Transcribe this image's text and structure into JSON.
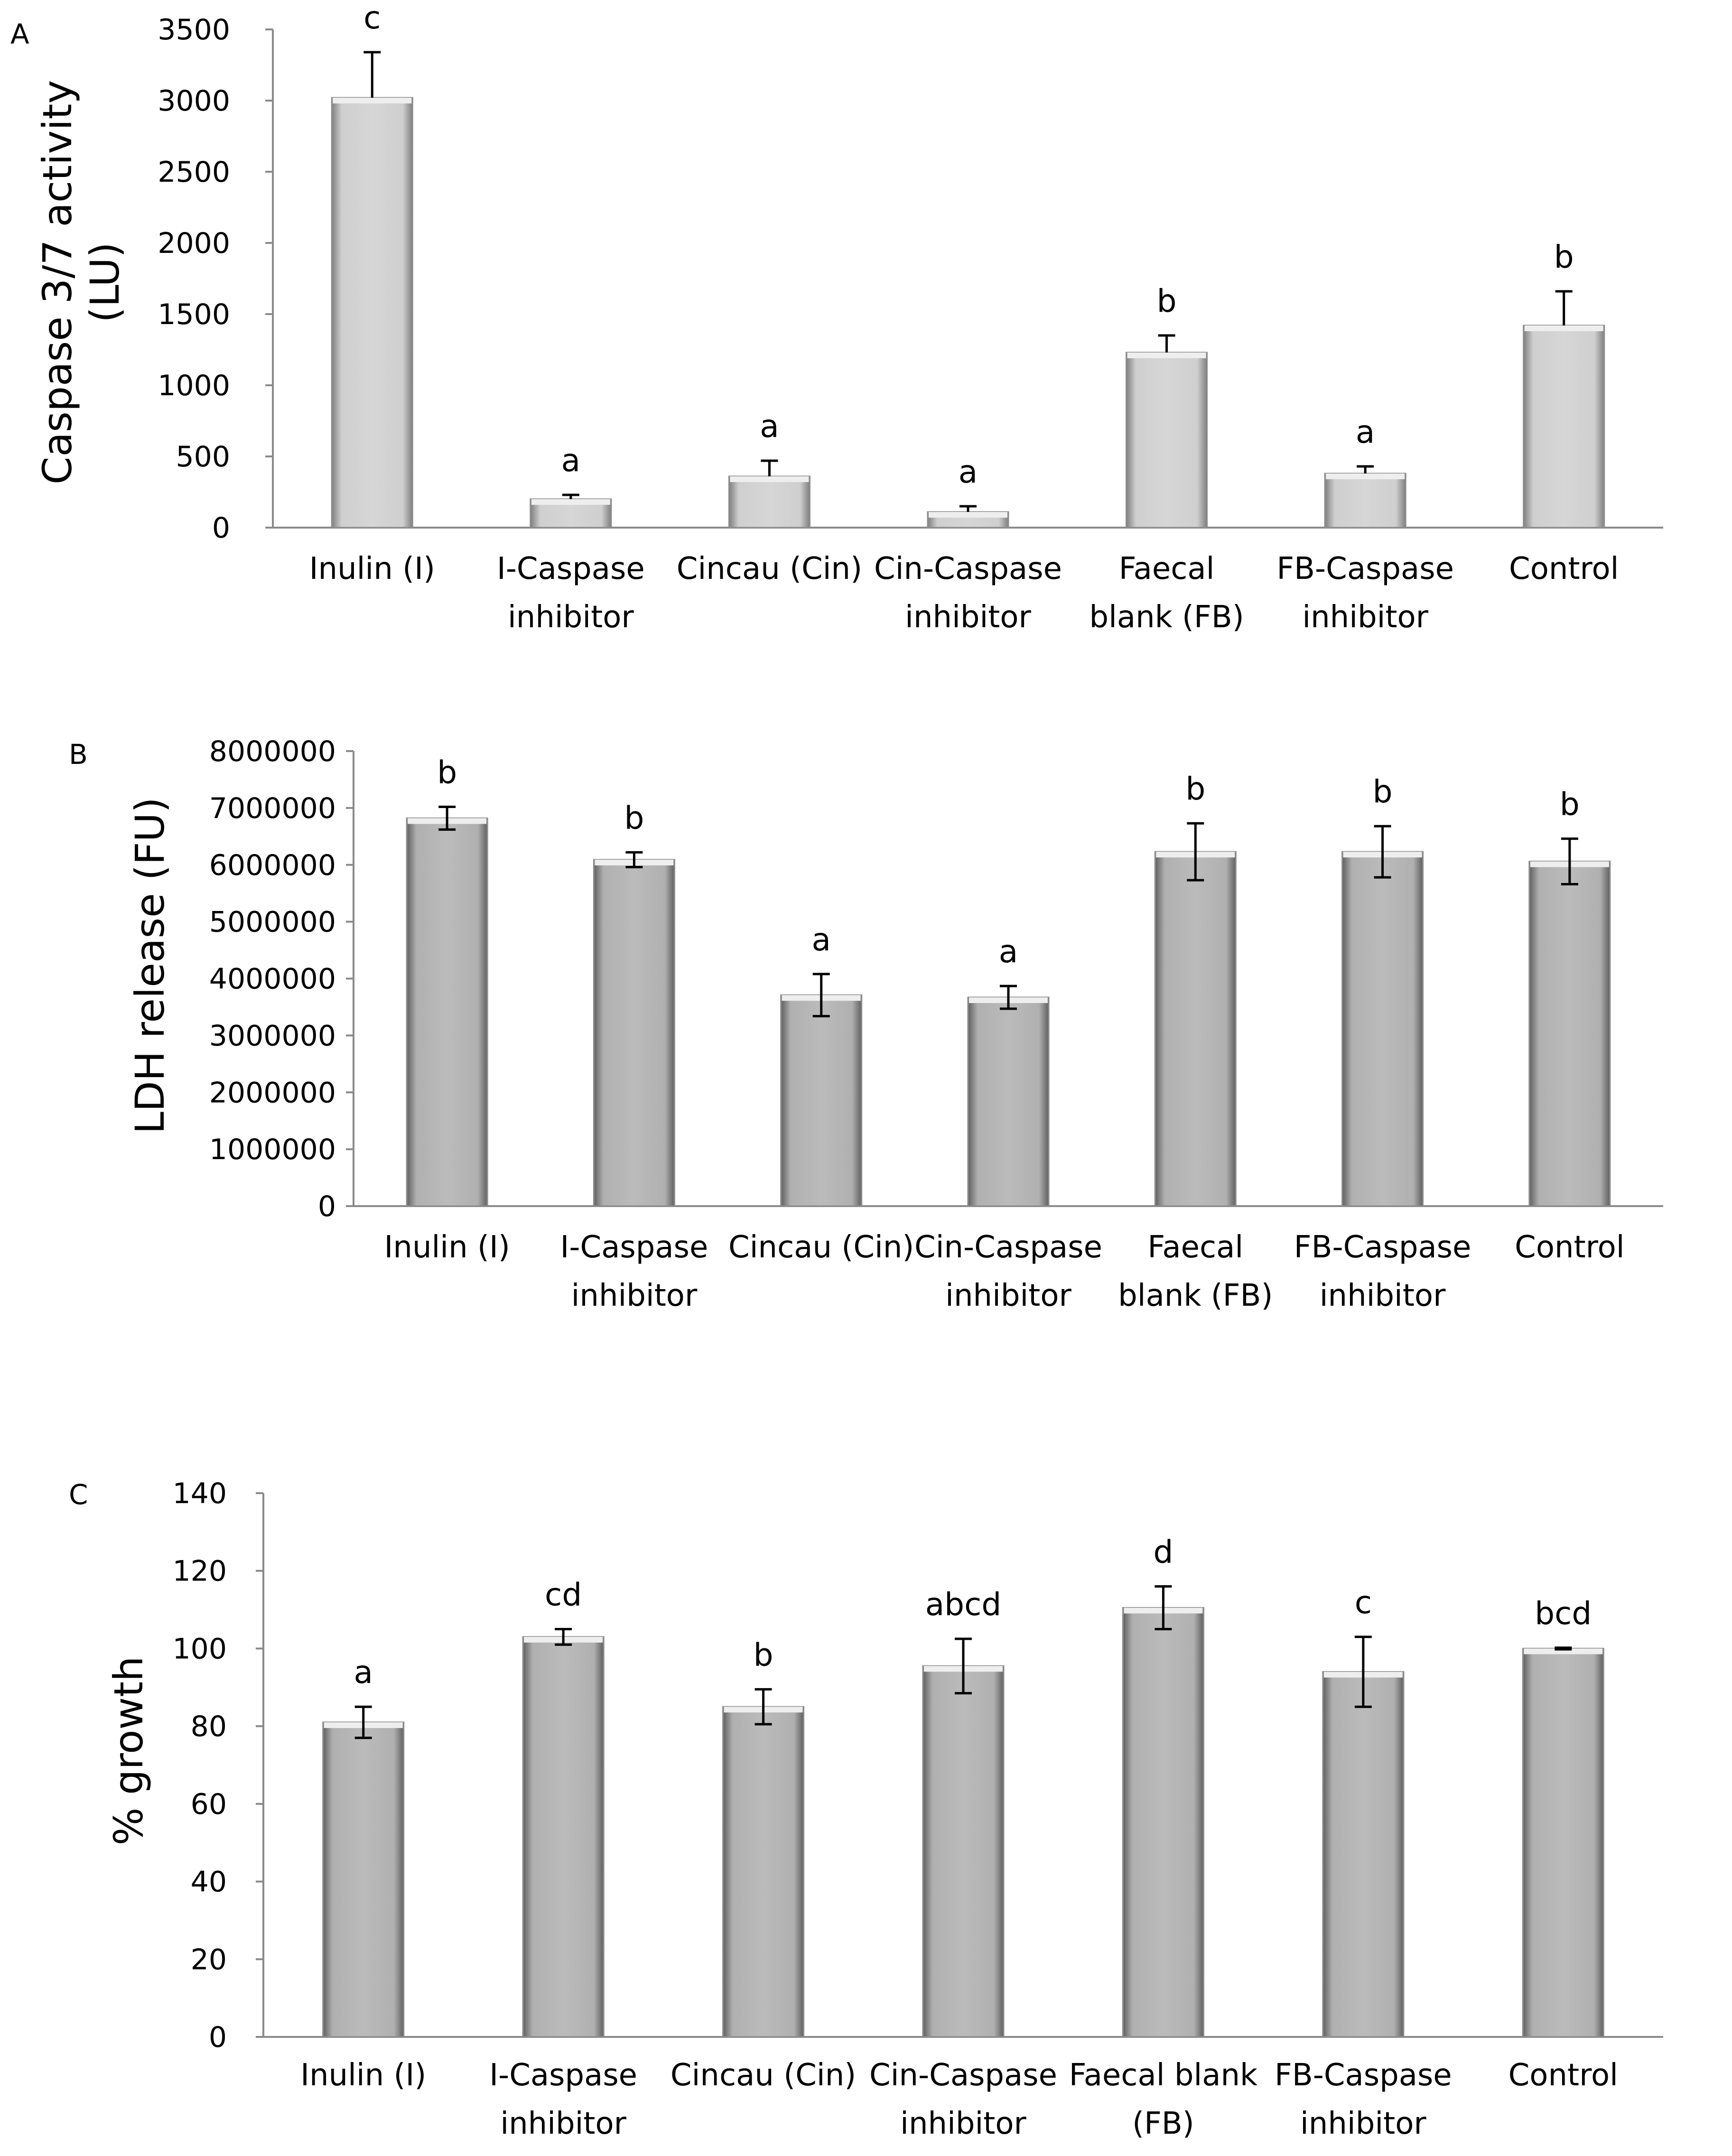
{
  "chart_data": [
    {
      "type": "bar",
      "panel_label": "A",
      "title": "",
      "xlabel": "",
      "ylabel_lines": [
        "Caspase 3/7 activity",
        "(LU)"
      ],
      "ylim": [
        0,
        3500
      ],
      "yticks": [
        "0",
        "500",
        "1000",
        "1500",
        "2000",
        "2500",
        "3000",
        "3500"
      ],
      "ytick_values": [
        0,
        500,
        1000,
        1500,
        2000,
        2500,
        3000,
        3500
      ],
      "grid": false,
      "categories": [
        [
          "Inulin (I)"
        ],
        [
          "I-Caspase",
          "inhibitor"
        ],
        [
          "Cincau (Cin)"
        ],
        [
          "Cin-Caspase",
          "inhibitor"
        ],
        [
          "Faecal",
          "blank (FB)"
        ],
        [
          "FB-Caspase",
          "inhibitor"
        ],
        [
          "Control"
        ]
      ],
      "values": [
        3020,
        200,
        360,
        110,
        1230,
        380,
        1420
      ],
      "errors": [
        320,
        30,
        110,
        40,
        120,
        50,
        240
      ],
      "error_style": "upper",
      "significance": [
        "c",
        "a",
        "a",
        "a",
        "b",
        "a",
        "b"
      ],
      "bar_color": "#cccccc"
    },
    {
      "type": "bar",
      "panel_label": "B",
      "title": "",
      "xlabel": "",
      "ylabel_lines": [
        "LDH release (FU)"
      ],
      "ylim": [
        0,
        8000000
      ],
      "yticks": [
        "0",
        "1000000",
        "2000000",
        "3000000",
        "4000000",
        "5000000",
        "6000000",
        "7000000",
        "8000000"
      ],
      "ytick_values": [
        0,
        1000000,
        2000000,
        3000000,
        4000000,
        5000000,
        6000000,
        7000000,
        8000000
      ],
      "grid": false,
      "categories": [
        [
          "Inulin (I)"
        ],
        [
          "I-Caspase",
          "inhibitor"
        ],
        [
          "Cincau (Cin)"
        ],
        [
          "Cin-Caspase",
          "inhibitor"
        ],
        [
          "Faecal",
          "blank (FB)"
        ],
        [
          "FB-Caspase",
          "inhibitor"
        ],
        [
          "Control"
        ]
      ],
      "values": [
        6820000,
        6090000,
        3710000,
        3670000,
        6230000,
        6230000,
        6060000
      ],
      "errors": [
        200000,
        130000,
        370000,
        200000,
        500000,
        450000,
        400000
      ],
      "error_style": "both",
      "significance": [
        "b",
        "b",
        "a",
        "a",
        "b",
        "b",
        "b"
      ],
      "bar_color": "#b2b2b2"
    },
    {
      "type": "bar",
      "panel_label": "C",
      "title": "",
      "xlabel": "",
      "ylabel_lines": [
        "% growth"
      ],
      "ylim": [
        0,
        140
      ],
      "yticks": [
        "0",
        "20",
        "40",
        "60",
        "80",
        "100",
        "120",
        "140"
      ],
      "ytick_values": [
        0,
        20,
        40,
        60,
        80,
        100,
        120,
        140
      ],
      "grid": false,
      "categories": [
        [
          "Inulin (I)"
        ],
        [
          "I-Caspase",
          "inhibitor"
        ],
        [
          "Cincau (Cin)"
        ],
        [
          "Cin-Caspase",
          "inhibitor"
        ],
        [
          "Faecal blank",
          "(FB)"
        ],
        [
          "FB-Caspase",
          "inhibitor"
        ],
        [
          "Control"
        ]
      ],
      "values": [
        81,
        103,
        85,
        95.5,
        110.5,
        94,
        100
      ],
      "errors": [
        4,
        2,
        4.5,
        7,
        5.5,
        9,
        0.2
      ],
      "error_style": "both",
      "significance": [
        "a",
        "cd",
        "b",
        "abcd",
        "d",
        "c",
        "bcd"
      ],
      "bar_color": "#b2b2b2"
    }
  ]
}
